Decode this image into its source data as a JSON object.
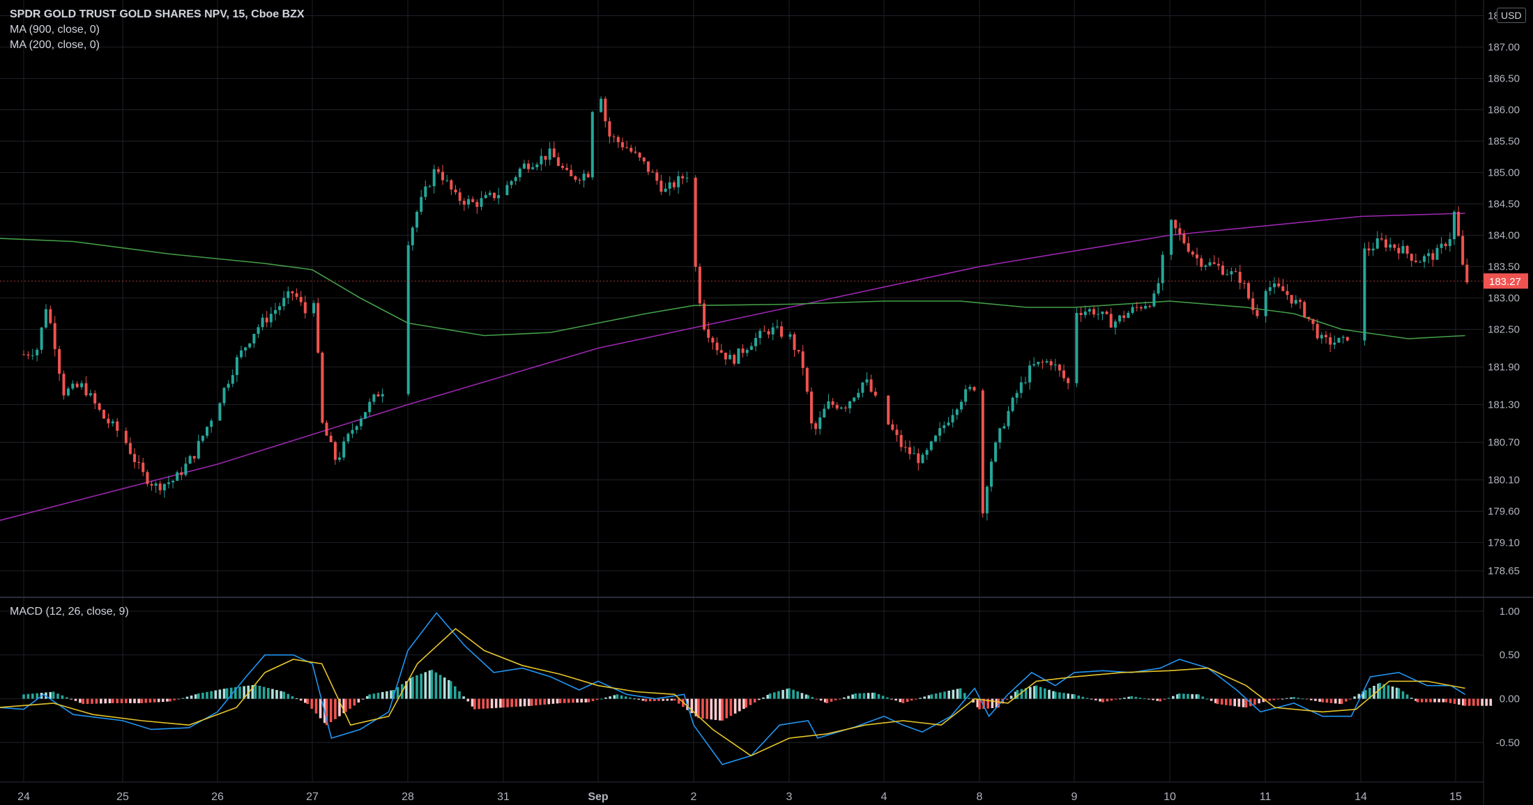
{
  "legend": {
    "title": "SPDR GOLD TRUST GOLD SHARES NPV, 15, Cboe BZX",
    "ma900": "MA (900, close, 0)",
    "ma200": "MA (200, close, 0)",
    "macd": "MACD (12, 26, close, 9)"
  },
  "currency": "USD",
  "last_price_label": "183.27",
  "colors": {
    "background": "#000000",
    "grid": "#1f2128",
    "up": "#26a69a",
    "down": "#ef5350",
    "ma900": "#9c27b0",
    "ma200": "#43a047",
    "macd_line": "#2196f3",
    "signal_line": "#e7c62b",
    "price_badge": "#ef5350",
    "axis_text": "#b2b5be"
  },
  "chart_data": [
    {
      "type": "candlestick",
      "title": "SPDR GOLD TRUST GOLD SHARES NPV, 15, Cboe BZX",
      "x_ticks": [
        "24",
        "25",
        "26",
        "27",
        "28",
        "31",
        "Sep",
        "2",
        "3",
        "4",
        "8",
        "9",
        "10",
        "11",
        "14",
        "15"
      ],
      "y_ticks": [
        "187.50",
        "187.00",
        "186.50",
        "186.00",
        "185.50",
        "185.00",
        "184.50",
        "184.00",
        "183.50",
        "183.00",
        "182.50",
        "181.90",
        "181.30",
        "180.70",
        "180.10",
        "179.60",
        "179.10",
        "178.65"
      ],
      "ylim": [
        178.25,
        187.75
      ],
      "last_price": 183.27,
      "series_close_path": [
        [
          0.0,
          182.1
        ],
        [
          0.15,
          182.2
        ],
        [
          0.22,
          182.9
        ],
        [
          0.3,
          182.4
        ],
        [
          0.4,
          181.5
        ],
        [
          0.6,
          181.6
        ],
        [
          0.8,
          181.1
        ],
        [
          1.0,
          180.8
        ],
        [
          1.2,
          180.2
        ],
        [
          1.35,
          180.0
        ],
        [
          1.55,
          180.1
        ],
        [
          1.75,
          180.5
        ],
        [
          2.0,
          181.3
        ],
        [
          2.2,
          182.0
        ],
        [
          2.4,
          182.5
        ],
        [
          2.6,
          182.8
        ],
        [
          2.8,
          183.1
        ],
        [
          2.95,
          182.7
        ],
        [
          3.0,
          183.3
        ],
        [
          3.05,
          182.3
        ],
        [
          3.1,
          181.0
        ],
        [
          3.25,
          180.4
        ],
        [
          3.45,
          181.0
        ],
        [
          3.7,
          181.5
        ],
        [
          3.9,
          181.7
        ],
        [
          4.0,
          183.9
        ],
        [
          4.1,
          184.4
        ],
        [
          4.3,
          185.1
        ],
        [
          4.5,
          184.6
        ],
        [
          4.7,
          184.5
        ],
        [
          5.0,
          184.7
        ],
        [
          5.2,
          185.1
        ],
        [
          5.5,
          185.3
        ],
        [
          5.7,
          184.9
        ],
        [
          5.9,
          185.0
        ],
        [
          5.97,
          186.8
        ],
        [
          6.1,
          185.6
        ],
        [
          6.3,
          185.4
        ],
        [
          6.5,
          185.1
        ],
        [
          6.7,
          184.7
        ],
        [
          6.95,
          185.0
        ],
        [
          7.0,
          183.7
        ],
        [
          7.1,
          182.6
        ],
        [
          7.25,
          182.2
        ],
        [
          7.4,
          182.0
        ],
        [
          7.6,
          182.3
        ],
        [
          7.8,
          182.5
        ],
        [
          8.0,
          182.4
        ],
        [
          8.15,
          181.9
        ],
        [
          8.25,
          180.8
        ],
        [
          8.4,
          181.3
        ],
        [
          8.6,
          181.3
        ],
        [
          8.8,
          181.7
        ],
        [
          9.0,
          181.1
        ],
        [
          9.2,
          180.6
        ],
        [
          9.4,
          180.4
        ],
        [
          9.6,
          180.9
        ],
        [
          9.8,
          181.4
        ],
        [
          9.95,
          181.6
        ],
        [
          10.0,
          179.2
        ],
        [
          10.1,
          180.3
        ],
        [
          10.25,
          181.0
        ],
        [
          10.4,
          181.5
        ],
        [
          10.55,
          181.9
        ],
        [
          10.75,
          182.0
        ],
        [
          10.95,
          181.6
        ],
        [
          11.0,
          182.8
        ],
        [
          11.2,
          182.8
        ],
        [
          11.4,
          182.6
        ],
        [
          11.6,
          182.8
        ],
        [
          11.85,
          183.0
        ],
        [
          12.0,
          184.2
        ],
        [
          12.15,
          183.9
        ],
        [
          12.3,
          183.6
        ],
        [
          12.5,
          183.5
        ],
        [
          12.75,
          183.3
        ],
        [
          12.9,
          182.7
        ],
        [
          13.0,
          183.2
        ],
        [
          13.2,
          183.1
        ],
        [
          13.4,
          182.8
        ],
        [
          13.6,
          182.3
        ],
        [
          13.85,
          182.3
        ],
        [
          14.0,
          183.7
        ],
        [
          14.2,
          183.9
        ],
        [
          14.4,
          183.8
        ],
        [
          14.6,
          183.6
        ],
        [
          14.8,
          183.7
        ],
        [
          14.95,
          184.0
        ],
        [
          15.0,
          184.5
        ],
        [
          15.05,
          183.6
        ],
        [
          15.12,
          183.27
        ]
      ],
      "ma900": [
        [
          -0.25,
          179.45
        ],
        [
          2.0,
          180.35
        ],
        [
          4.0,
          181.3
        ],
        [
          6.0,
          182.2
        ],
        [
          8.0,
          182.85
        ],
        [
          10.0,
          183.5
        ],
        [
          12.0,
          184.0
        ],
        [
          14.0,
          184.3
        ],
        [
          15.1,
          184.35
        ]
      ],
      "ma200": [
        [
          -0.25,
          183.95
        ],
        [
          0.5,
          183.9
        ],
        [
          1.5,
          183.7
        ],
        [
          2.5,
          183.55
        ],
        [
          3.0,
          183.45
        ],
        [
          3.5,
          183.0
        ],
        [
          4.0,
          182.6
        ],
        [
          4.8,
          182.4
        ],
        [
          5.5,
          182.45
        ],
        [
          6.0,
          182.6
        ],
        [
          6.5,
          182.75
        ],
        [
          7.0,
          182.88
        ],
        [
          8.0,
          182.9
        ],
        [
          9.0,
          182.95
        ],
        [
          9.8,
          182.95
        ],
        [
          10.5,
          182.85
        ],
        [
          11.0,
          182.85
        ],
        [
          12.0,
          182.95
        ],
        [
          12.8,
          182.85
        ],
        [
          13.3,
          182.75
        ],
        [
          13.8,
          182.5
        ],
        [
          14.5,
          182.35
        ],
        [
          15.1,
          182.4
        ]
      ]
    },
    {
      "type": "macd",
      "title": "MACD (12, 26, close, 9)",
      "y_ticks": [
        "1.00",
        "0.50",
        "0.00",
        "-0.50"
      ],
      "ylim": [
        -0.95,
        1.15
      ],
      "macd": [
        [
          -0.25,
          -0.1
        ],
        [
          0.0,
          -0.12
        ],
        [
          0.2,
          0.05
        ],
        [
          0.5,
          -0.18
        ],
        [
          1.0,
          -0.25
        ],
        [
          1.3,
          -0.35
        ],
        [
          1.7,
          -0.33
        ],
        [
          2.0,
          -0.15
        ],
        [
          2.3,
          0.25
        ],
        [
          2.5,
          0.5
        ],
        [
          2.8,
          0.5
        ],
        [
          3.0,
          0.4
        ],
        [
          3.2,
          -0.45
        ],
        [
          3.5,
          -0.35
        ],
        [
          3.8,
          -0.15
        ],
        [
          4.0,
          0.55
        ],
        [
          4.3,
          0.98
        ],
        [
          4.6,
          0.6
        ],
        [
          4.9,
          0.3
        ],
        [
          5.2,
          0.35
        ],
        [
          5.5,
          0.25
        ],
        [
          5.8,
          0.1
        ],
        [
          6.0,
          0.2
        ],
        [
          6.3,
          0.05
        ],
        [
          6.6,
          0.0
        ],
        [
          6.9,
          0.05
        ],
        [
          7.0,
          -0.3
        ],
        [
          7.3,
          -0.75
        ],
        [
          7.6,
          -0.65
        ],
        [
          7.9,
          -0.3
        ],
        [
          8.2,
          -0.25
        ],
        [
          8.3,
          -0.45
        ],
        [
          8.7,
          -0.32
        ],
        [
          9.0,
          -0.2
        ],
        [
          9.2,
          -0.3
        ],
        [
          9.4,
          -0.38
        ],
        [
          9.7,
          -0.2
        ],
        [
          9.95,
          0.12
        ],
        [
          10.1,
          -0.2
        ],
        [
          10.3,
          0.05
        ],
        [
          10.55,
          0.3
        ],
        [
          10.8,
          0.15
        ],
        [
          11.0,
          0.3
        ],
        [
          11.3,
          0.32
        ],
        [
          11.6,
          0.3
        ],
        [
          11.9,
          0.35
        ],
        [
          12.1,
          0.45
        ],
        [
          12.4,
          0.35
        ],
        [
          12.7,
          0.1
        ],
        [
          12.95,
          -0.15
        ],
        [
          13.3,
          -0.05
        ],
        [
          13.6,
          -0.2
        ],
        [
          13.9,
          -0.2
        ],
        [
          14.1,
          0.25
        ],
        [
          14.4,
          0.3
        ],
        [
          14.7,
          0.15
        ],
        [
          14.95,
          0.15
        ],
        [
          15.1,
          0.05
        ]
      ],
      "signal": [
        [
          -0.25,
          -0.1
        ],
        [
          0.3,
          -0.05
        ],
        [
          0.7,
          -0.18
        ],
        [
          1.2,
          -0.25
        ],
        [
          1.7,
          -0.3
        ],
        [
          2.2,
          -0.1
        ],
        [
          2.5,
          0.3
        ],
        [
          2.8,
          0.45
        ],
        [
          3.1,
          0.4
        ],
        [
          3.4,
          -0.3
        ],
        [
          3.8,
          -0.2
        ],
        [
          4.1,
          0.4
        ],
        [
          4.5,
          0.8
        ],
        [
          4.8,
          0.55
        ],
        [
          5.2,
          0.38
        ],
        [
          5.6,
          0.28
        ],
        [
          6.0,
          0.15
        ],
        [
          6.4,
          0.08
        ],
        [
          6.8,
          0.05
        ],
        [
          7.2,
          -0.35
        ],
        [
          7.6,
          -0.65
        ],
        [
          8.0,
          -0.45
        ],
        [
          8.4,
          -0.4
        ],
        [
          8.8,
          -0.3
        ],
        [
          9.2,
          -0.25
        ],
        [
          9.6,
          -0.3
        ],
        [
          9.95,
          0.0
        ],
        [
          10.3,
          -0.05
        ],
        [
          10.6,
          0.2
        ],
        [
          11.0,
          0.25
        ],
        [
          11.5,
          0.3
        ],
        [
          12.0,
          0.32
        ],
        [
          12.4,
          0.35
        ],
        [
          12.8,
          0.15
        ],
        [
          13.1,
          -0.1
        ],
        [
          13.6,
          -0.15
        ],
        [
          13.95,
          -0.12
        ],
        [
          14.3,
          0.2
        ],
        [
          14.7,
          0.2
        ],
        [
          15.1,
          0.12
        ]
      ],
      "histogram": [
        [
          0.0,
          0.05
        ],
        [
          0.3,
          0.08
        ],
        [
          0.6,
          -0.06
        ],
        [
          0.9,
          -0.05
        ],
        [
          1.2,
          -0.05
        ],
        [
          1.5,
          -0.03
        ],
        [
          1.8,
          0.06
        ],
        [
          2.1,
          0.12
        ],
        [
          2.4,
          0.16
        ],
        [
          2.7,
          0.08
        ],
        [
          2.95,
          -0.06
        ],
        [
          3.15,
          -0.3
        ],
        [
          3.35,
          -0.15
        ],
        [
          3.6,
          0.05
        ],
        [
          3.85,
          0.1
        ],
        [
          4.05,
          0.25
        ],
        [
          4.25,
          0.33
        ],
        [
          4.45,
          0.2
        ],
        [
          4.7,
          -0.12
        ],
        [
          5.0,
          -0.1
        ],
        [
          5.3,
          -0.08
        ],
        [
          5.6,
          -0.05
        ],
        [
          5.9,
          -0.04
        ],
        [
          6.2,
          0.05
        ],
        [
          6.5,
          -0.03
        ],
        [
          6.8,
          -0.02
        ],
        [
          7.05,
          -0.22
        ],
        [
          7.3,
          -0.25
        ],
        [
          7.55,
          -0.1
        ],
        [
          7.8,
          0.06
        ],
        [
          8.0,
          0.12
        ],
        [
          8.2,
          0.04
        ],
        [
          8.4,
          -0.05
        ],
        [
          8.7,
          0.06
        ],
        [
          8.9,
          0.07
        ],
        [
          9.2,
          -0.05
        ],
        [
          9.5,
          0.05
        ],
        [
          9.8,
          0.12
        ],
        [
          10.0,
          -0.12
        ],
        [
          10.2,
          -0.1
        ],
        [
          10.4,
          0.1
        ],
        [
          10.6,
          0.15
        ],
        [
          10.8,
          0.08
        ],
        [
          11.0,
          0.05
        ],
        [
          11.3,
          -0.04
        ],
        [
          11.6,
          0.03
        ],
        [
          11.9,
          -0.03
        ],
        [
          12.1,
          0.06
        ],
        [
          12.3,
          0.05
        ],
        [
          12.5,
          -0.06
        ],
        [
          12.8,
          -0.1
        ],
        [
          13.0,
          -0.03
        ],
        [
          13.3,
          0.02
        ],
        [
          13.6,
          -0.04
        ],
        [
          13.8,
          -0.06
        ],
        [
          14.05,
          0.1
        ],
        [
          14.2,
          0.18
        ],
        [
          14.4,
          0.12
        ],
        [
          14.6,
          -0.04
        ],
        [
          14.9,
          -0.04
        ],
        [
          15.1,
          -0.08
        ]
      ]
    }
  ]
}
